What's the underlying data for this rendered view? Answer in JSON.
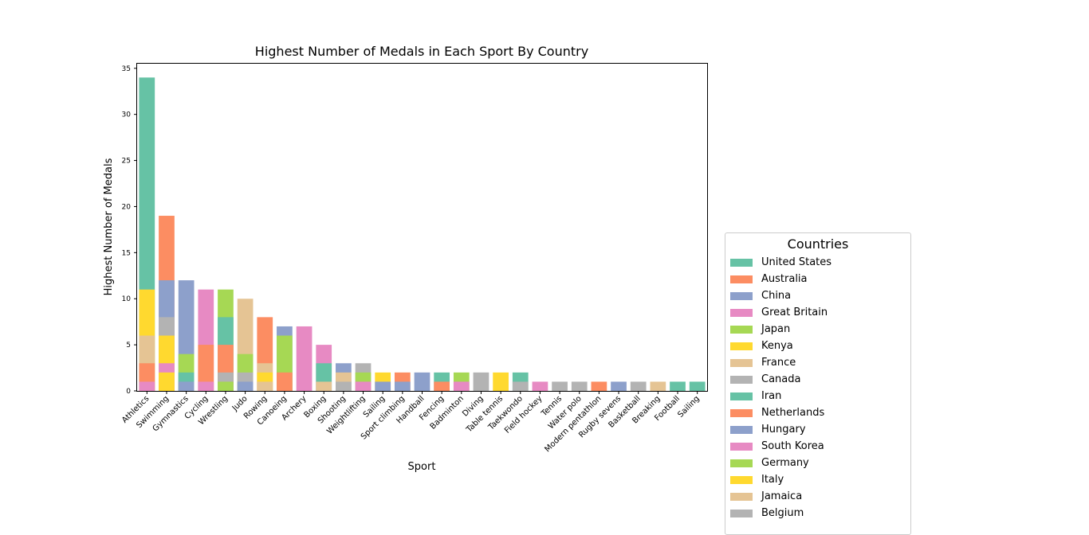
{
  "chart_data": {
    "type": "bar",
    "stacked": true,
    "title": "Highest Number of Medals in Each Sport By Country",
    "xlabel": "Sport",
    "ylabel": "Highest Number of Medals",
    "ylim": [
      0,
      35.5
    ],
    "yticks": [
      0,
      5,
      10,
      15,
      20,
      25,
      30,
      35
    ],
    "grid": false,
    "legend_title": "Countries",
    "legend_placement": "outside right, bottom",
    "categories": [
      "Athletics",
      "Swimming",
      "Gymnastics",
      "Cycling",
      "Wrestling",
      "Judo",
      "Rowing",
      "Canoeing",
      "Archery",
      "Boxing",
      "Shooting",
      "Weightlifting",
      "Sailing",
      "Sport climbing",
      "Handball",
      "Fencing",
      "Badminton",
      "Diving",
      "Table tennis",
      "Taekwondo",
      "Field hockey",
      "Tennis",
      "Water polo",
      "Modern pentathlon",
      "Rugby sevens",
      "Basketball",
      "Breaking",
      "Football",
      "Sailing"
    ],
    "countries": [
      {
        "name": "United States",
        "color": "#66c2a5"
      },
      {
        "name": "Australia",
        "color": "#fc8d62"
      },
      {
        "name": "China",
        "color": "#8da0cb"
      },
      {
        "name": "Great Britain",
        "color": "#e78ac3"
      },
      {
        "name": "Japan",
        "color": "#a6d854"
      },
      {
        "name": "Kenya",
        "color": "#ffd92f"
      },
      {
        "name": "France",
        "color": "#e5c494"
      },
      {
        "name": "Canada",
        "color": "#b3b3b3"
      },
      {
        "name": "Iran",
        "color": "#66c2a5"
      },
      {
        "name": "Netherlands",
        "color": "#fc8d62"
      },
      {
        "name": "Hungary",
        "color": "#8da0cb"
      },
      {
        "name": "South Korea",
        "color": "#e78ac3"
      },
      {
        "name": "Germany",
        "color": "#a6d854"
      },
      {
        "name": "Italy",
        "color": "#ffd92f"
      },
      {
        "name": "Jamaica",
        "color": "#e5c494"
      },
      {
        "name": "Belgium",
        "color": "#b3b3b3"
      }
    ],
    "bars": [
      {
        "sport": "Athletics",
        "segments": [
          {
            "country": "United States",
            "value": 34
          },
          {
            "country": "Kenya",
            "value": 11
          },
          {
            "country": "Jamaica",
            "value": 6
          },
          {
            "country": "Netherlands",
            "value": 3
          },
          {
            "country": "Great Britain",
            "value": 1
          }
        ]
      },
      {
        "sport": "Swimming",
        "segments": [
          {
            "country": "Australia",
            "value": 19
          },
          {
            "country": "China",
            "value": 12
          },
          {
            "country": "Canada",
            "value": 8
          },
          {
            "country": "Italy",
            "value": 6
          },
          {
            "country": "Great Britain",
            "value": 3
          },
          {
            "country": "Kenya",
            "value": 2
          }
        ]
      },
      {
        "sport": "Gymnastics",
        "segments": [
          {
            "country": "China",
            "value": 12
          },
          {
            "country": "Japan",
            "value": 4
          },
          {
            "country": "United States",
            "value": 2
          },
          {
            "country": "Hungary",
            "value": 1
          }
        ]
      },
      {
        "sport": "Cycling",
        "segments": [
          {
            "country": "Great Britain",
            "value": 11
          },
          {
            "country": "Netherlands",
            "value": 5
          },
          {
            "country": "South Korea",
            "value": 1
          }
        ]
      },
      {
        "sport": "Wrestling",
        "segments": [
          {
            "country": "Japan",
            "value": 11
          },
          {
            "country": "Iran",
            "value": 8
          },
          {
            "country": "Netherlands",
            "value": 5
          },
          {
            "country": "Canada",
            "value": 2
          },
          {
            "country": "Germany",
            "value": 1
          }
        ]
      },
      {
        "sport": "Judo",
        "segments": [
          {
            "country": "France",
            "value": 10
          },
          {
            "country": "Japan",
            "value": 4
          },
          {
            "country": "Belgium",
            "value": 2
          },
          {
            "country": "Hungary",
            "value": 1
          }
        ]
      },
      {
        "sport": "Rowing",
        "segments": [
          {
            "country": "Netherlands",
            "value": 8
          },
          {
            "country": "Jamaica",
            "value": 3
          },
          {
            "country": "Italy",
            "value": 2
          },
          {
            "country": "France",
            "value": 1
          }
        ]
      },
      {
        "sport": "Canoeing",
        "segments": [
          {
            "country": "China",
            "value": 7
          },
          {
            "country": "Germany",
            "value": 6
          },
          {
            "country": "Australia",
            "value": 2
          }
        ]
      },
      {
        "sport": "Archery",
        "segments": [
          {
            "country": "South Korea",
            "value": 7
          }
        ]
      },
      {
        "sport": "Boxing",
        "segments": [
          {
            "country": "Great Britain",
            "value": 5
          },
          {
            "country": "Iran",
            "value": 3
          },
          {
            "country": "France",
            "value": 1
          }
        ]
      },
      {
        "sport": "Shooting",
        "segments": [
          {
            "country": "China",
            "value": 3
          },
          {
            "country": "France",
            "value": 2
          },
          {
            "country": "Belgium",
            "value": 1
          }
        ]
      },
      {
        "sport": "Weightlifting",
        "segments": [
          {
            "country": "Canada",
            "value": 3
          },
          {
            "country": "Germany",
            "value": 2
          },
          {
            "country": "South Korea",
            "value": 1
          }
        ]
      },
      {
        "sport": "Sailing",
        "segments": [
          {
            "country": "Kenya",
            "value": 2
          },
          {
            "country": "China",
            "value": 1
          }
        ]
      },
      {
        "sport": "Sport climbing",
        "segments": [
          {
            "country": "Australia",
            "value": 2
          },
          {
            "country": "Hungary",
            "value": 1
          }
        ]
      },
      {
        "sport": "Handball",
        "segments": [
          {
            "country": "China",
            "value": 2
          }
        ]
      },
      {
        "sport": "Fencing",
        "segments": [
          {
            "country": "United States",
            "value": 2
          },
          {
            "country": "Netherlands",
            "value": 1
          }
        ]
      },
      {
        "sport": "Badminton",
        "segments": [
          {
            "country": "Japan",
            "value": 2
          },
          {
            "country": "South Korea",
            "value": 1
          }
        ]
      },
      {
        "sport": "Diving",
        "segments": [
          {
            "country": "Canada",
            "value": 2
          }
        ]
      },
      {
        "sport": "Table tennis",
        "segments": [
          {
            "country": "Kenya",
            "value": 2
          }
        ]
      },
      {
        "sport": "Taekwondo",
        "segments": [
          {
            "country": "Iran",
            "value": 2
          },
          {
            "country": "Belgium",
            "value": 1
          }
        ]
      },
      {
        "sport": "Field hockey",
        "segments": [
          {
            "country": "Great Britain",
            "value": 1
          }
        ]
      },
      {
        "sport": "Tennis",
        "segments": [
          {
            "country": "Canada",
            "value": 1
          }
        ]
      },
      {
        "sport": "Water polo",
        "segments": [
          {
            "country": "Canada",
            "value": 1
          }
        ]
      },
      {
        "sport": "Modern pentathlon",
        "segments": [
          {
            "country": "Australia",
            "value": 1
          }
        ]
      },
      {
        "sport": "Rugby sevens",
        "segments": [
          {
            "country": "China",
            "value": 1
          }
        ]
      },
      {
        "sport": "Basketball",
        "segments": [
          {
            "country": "Canada",
            "value": 1
          }
        ]
      },
      {
        "sport": "Breaking",
        "segments": [
          {
            "country": "France",
            "value": 1
          }
        ]
      },
      {
        "sport": "Football",
        "segments": [
          {
            "country": "United States",
            "value": 1
          }
        ]
      },
      {
        "sport": "Sailing",
        "segments": [
          {
            "country": "United States",
            "value": 1
          }
        ]
      }
    ]
  }
}
